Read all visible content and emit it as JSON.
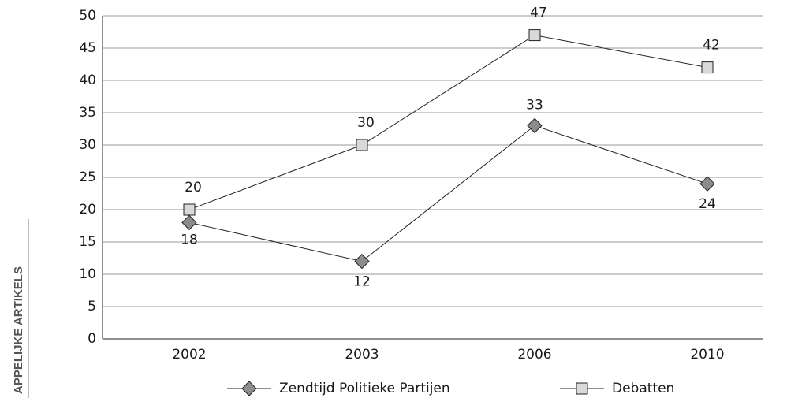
{
  "margin_text": "APPELIJKE ARTIKELS",
  "chart_data": {
    "type": "line",
    "categories": [
      "2002",
      "2003",
      "2006",
      "2010"
    ],
    "series": [
      {
        "name": "Zendtijd Politieke Partijen",
        "color": "#8c8c8c",
        "marker": "diamond",
        "values": [
          18,
          12,
          33,
          24
        ]
      },
      {
        "name": "Debatten",
        "color": "#d9d9d9",
        "marker": "square",
        "values": [
          20,
          30,
          47,
          42
        ]
      }
    ],
    "ylim": [
      0,
      50
    ],
    "yticks": [
      0,
      5,
      10,
      15,
      20,
      25,
      30,
      35,
      40,
      45,
      50
    ],
    "grid": true,
    "legend": "bottom"
  }
}
